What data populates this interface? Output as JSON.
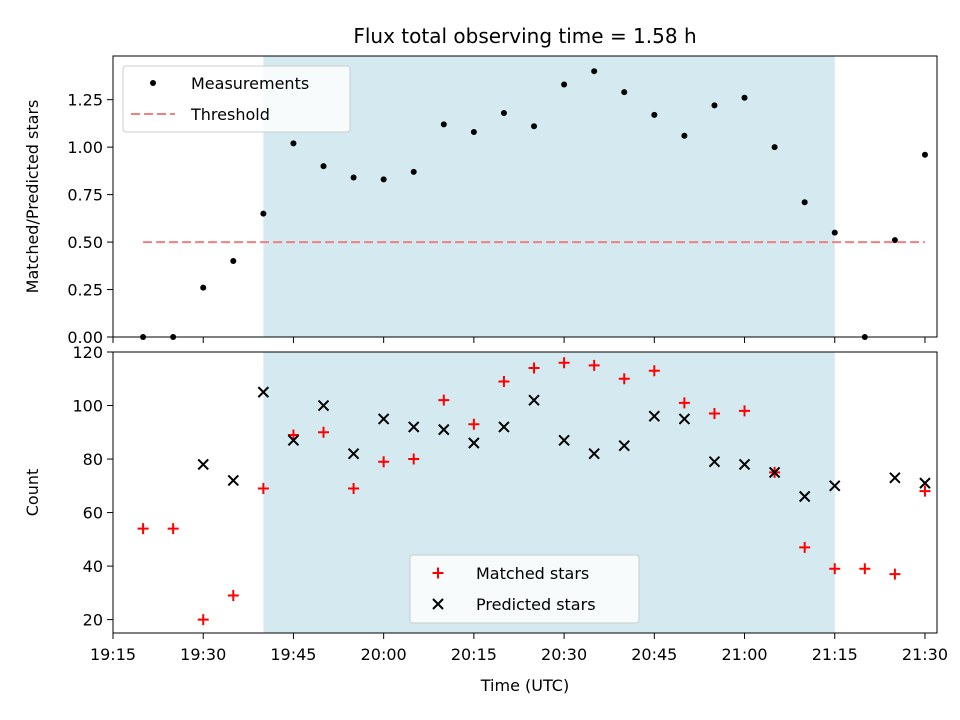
{
  "chart_data": [
    {
      "type": "scatter",
      "title": "Flux total observing time = 1.58 h",
      "xlabel": "",
      "ylabel": "Matched/Predicted stars",
      "ylim": [
        0,
        1.48
      ],
      "yticks": [
        "0.00",
        "0.25",
        "0.50",
        "0.75",
        "1.00",
        "1.25"
      ],
      "ytick_values": [
        0,
        0.25,
        0.5,
        0.75,
        1.0,
        1.25
      ],
      "highlight_span": [
        "19:40",
        "21:15"
      ],
      "highlight_color": "#d4eaf0",
      "legend_position": "top-left",
      "series": [
        {
          "name": "Measurements",
          "marker": "dot",
          "color": "#000000",
          "points": [
            [
              "19:20",
              0.0
            ],
            [
              "19:25",
              0.0
            ],
            [
              "19:30",
              0.26
            ],
            [
              "19:35",
              0.4
            ],
            [
              "19:40",
              0.65
            ],
            [
              "19:45",
              1.02
            ],
            [
              "19:50",
              0.9
            ],
            [
              "19:55",
              0.84
            ],
            [
              "20:00",
              0.83
            ],
            [
              "20:05",
              0.87
            ],
            [
              "20:10",
              1.12
            ],
            [
              "20:15",
              1.08
            ],
            [
              "20:20",
              1.18
            ],
            [
              "20:25",
              1.11
            ],
            [
              "20:30",
              1.33
            ],
            [
              "20:35",
              1.4
            ],
            [
              "20:40",
              1.29
            ],
            [
              "20:45",
              1.17
            ],
            [
              "20:50",
              1.06
            ],
            [
              "20:55",
              1.22
            ],
            [
              "21:00",
              1.26
            ],
            [
              "21:05",
              1.0
            ],
            [
              "21:10",
              0.71
            ],
            [
              "21:15",
              0.55
            ],
            [
              "21:20",
              0.0
            ],
            [
              "21:25",
              0.51
            ],
            [
              "21:30",
              0.96
            ]
          ]
        },
        {
          "name": "Threshold",
          "marker": "dashed-line",
          "color": "#f08080",
          "points": [
            [
              "19:20",
              0.5
            ],
            [
              "21:30",
              0.5
            ]
          ]
        }
      ]
    },
    {
      "type": "scatter",
      "title": "",
      "xlabel": "Time (UTC)",
      "ylabel": "Count",
      "ylim": [
        15,
        120
      ],
      "yticks": [
        "20",
        "40",
        "60",
        "80",
        "100",
        "120"
      ],
      "ytick_values": [
        20,
        40,
        60,
        80,
        100,
        120
      ],
      "xlim": [
        "19:15",
        "21:32"
      ],
      "xticks": [
        "19:15",
        "19:30",
        "19:45",
        "20:00",
        "20:15",
        "20:30",
        "20:45",
        "21:00",
        "21:15",
        "21:30"
      ],
      "highlight_span": [
        "19:40",
        "21:15"
      ],
      "highlight_color": "#d4eaf0",
      "legend_position": "bottom-center",
      "series": [
        {
          "name": "Matched stars",
          "marker": "plus",
          "color": "#ff0000",
          "points": [
            [
              "19:20",
              54
            ],
            [
              "19:25",
              54
            ],
            [
              "19:30",
              20
            ],
            [
              "19:35",
              29
            ],
            [
              "19:40",
              69
            ],
            [
              "19:45",
              89
            ],
            [
              "19:50",
              90
            ],
            [
              "19:55",
              69
            ],
            [
              "20:00",
              79
            ],
            [
              "20:05",
              80
            ],
            [
              "20:10",
              102
            ],
            [
              "20:15",
              93
            ],
            [
              "20:20",
              109
            ],
            [
              "20:25",
              114
            ],
            [
              "20:30",
              116
            ],
            [
              "20:35",
              115
            ],
            [
              "20:40",
              110
            ],
            [
              "20:45",
              113
            ],
            [
              "20:50",
              101
            ],
            [
              "20:55",
              97
            ],
            [
              "21:00",
              98
            ],
            [
              "21:05",
              75
            ],
            [
              "21:10",
              47
            ],
            [
              "21:15",
              39
            ],
            [
              "21:20",
              39
            ],
            [
              "21:25",
              37
            ],
            [
              "21:30",
              68
            ]
          ]
        },
        {
          "name": "Predicted stars",
          "marker": "x",
          "color": "#000000",
          "points": [
            [
              "19:30",
              78
            ],
            [
              "19:35",
              72
            ],
            [
              "19:40",
              105
            ],
            [
              "19:45",
              87
            ],
            [
              "19:50",
              100
            ],
            [
              "19:55",
              82
            ],
            [
              "20:00",
              95
            ],
            [
              "20:05",
              92
            ],
            [
              "20:10",
              91
            ],
            [
              "20:15",
              86
            ],
            [
              "20:20",
              92
            ],
            [
              "20:25",
              102
            ],
            [
              "20:30",
              87
            ],
            [
              "20:35",
              82
            ],
            [
              "20:40",
              85
            ],
            [
              "20:45",
              96
            ],
            [
              "20:50",
              95
            ],
            [
              "20:55",
              79
            ],
            [
              "21:00",
              78
            ],
            [
              "21:05",
              75
            ],
            [
              "21:10",
              66
            ],
            [
              "21:15",
              70
            ],
            [
              "21:25",
              73
            ],
            [
              "21:30",
              71
            ]
          ]
        }
      ]
    }
  ]
}
